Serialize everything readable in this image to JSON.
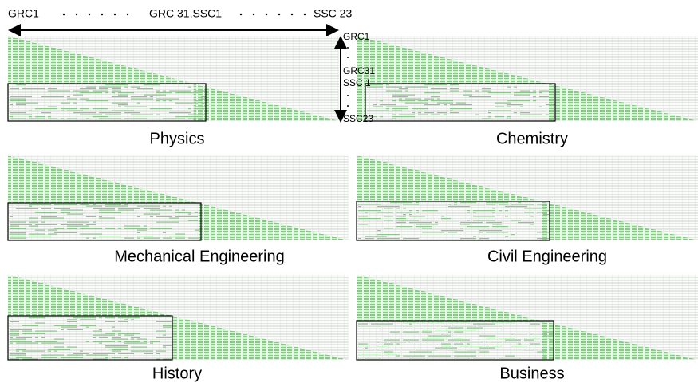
{
  "header": {
    "labels": [
      "GRC1",
      "GRC 31,SSC1",
      "SSC 23"
    ]
  },
  "side_labels": [
    "GRC1",
    "GRC31",
    "SSC 1",
    "SSC23"
  ],
  "panels": [
    {
      "title": "Physics"
    },
    {
      "title": "Chemistry"
    },
    {
      "title": "Mechanical Engineering"
    },
    {
      "title": "Civil Engineering"
    },
    {
      "title": "History"
    },
    {
      "title": "Business"
    }
  ]
}
